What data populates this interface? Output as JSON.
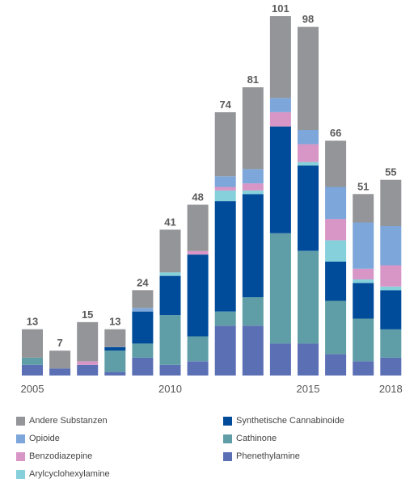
{
  "chart_data": {
    "type": "bar",
    "stacked": true,
    "categories": [
      "2005",
      "2006",
      "2007",
      "2008",
      "2009",
      "2010",
      "2011",
      "2012",
      "2013",
      "2014",
      "2015",
      "2016",
      "2017",
      "2018"
    ],
    "x_tick_labels": [
      {
        "category": "2005",
        "label": "2005"
      },
      {
        "category": "2010",
        "label": "2010"
      },
      {
        "category": "2015",
        "label": "2015"
      },
      {
        "category": "2018",
        "label": "2018"
      }
    ],
    "totals": [
      13,
      7,
      15,
      13,
      24,
      41,
      48,
      74,
      81,
      101,
      98,
      66,
      51,
      55
    ],
    "ylim": [
      0,
      101
    ],
    "grid": false,
    "legend_position": "bottom",
    "series": [
      {
        "name": "Phenethylamine",
        "color": "#5b6fb5",
        "values": [
          3,
          2,
          3,
          1,
          5,
          3,
          4,
          14,
          14,
          9,
          9,
          6,
          4,
          5
        ]
      },
      {
        "name": "Cathinone",
        "color": "#5f9ea7",
        "values": [
          2,
          0,
          0,
          6,
          4,
          14,
          7,
          4,
          8,
          31,
          26,
          15,
          12,
          8
        ]
      },
      {
        "name": "Synthetische Cannabinoide",
        "color": "#004b9a",
        "values": [
          0,
          0,
          0,
          1,
          9,
          11,
          23,
          31,
          29,
          30,
          24,
          11,
          10,
          11
        ]
      },
      {
        "name": "Arylcyclohexylamine",
        "color": "#86d0dc",
        "values": [
          0,
          0,
          0,
          0,
          0,
          1,
          0,
          3,
          1,
          0,
          1,
          6,
          1,
          1
        ]
      },
      {
        "name": "Benzodiazepine",
        "color": "#d896c6",
        "values": [
          0,
          0,
          1,
          0,
          0,
          0,
          1,
          1,
          2,
          4,
          5,
          6,
          3,
          6
        ]
      },
      {
        "name": "Opioide",
        "color": "#7da6da",
        "values": [
          0,
          0,
          0,
          0,
          1,
          0,
          0,
          3,
          4,
          4,
          4,
          9,
          13,
          11
        ]
      },
      {
        "name": "Andere Substanzen",
        "color": "#939598",
        "values": [
          8,
          5,
          11,
          5,
          5,
          12,
          13,
          18,
          23,
          23,
          29,
          13,
          8,
          13
        ]
      }
    ],
    "legend_order": [
      "Andere Substanzen",
      "Synthetische Cannabinoide",
      "Opioide",
      "Cathinone",
      "Benzodiazepine",
      "Phenethylamine",
      "Arylcyclohexylamine"
    ]
  }
}
